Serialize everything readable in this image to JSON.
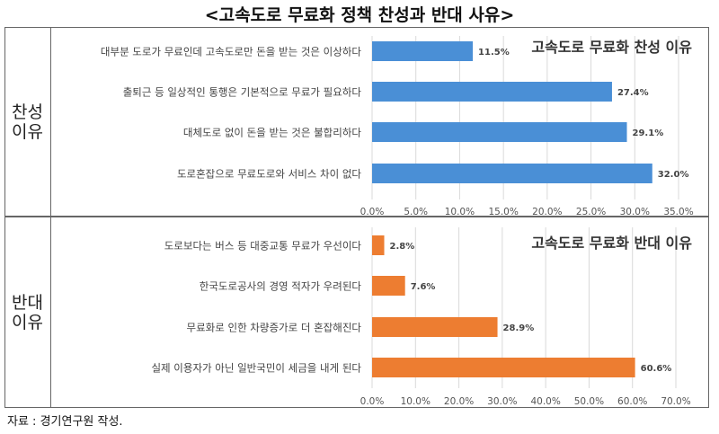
{
  "title": "<고속도로 무료화 정책 찬성과 반대 사유>",
  "footnote": "자료 : 경기연구원 작성.",
  "colors": {
    "pro": "#4a8fd6",
    "con": "#ed7d31",
    "grid": "#d9d9d9"
  },
  "chart_data": [
    {
      "type": "bar",
      "orientation": "horizontal",
      "side_label": [
        "찬성",
        "이유"
      ],
      "title": "고속도로 무료화 찬성 이유",
      "categories": [
        "대부분 도로가 무료인데 고속도로만 돈을 받는 것은 이상하다",
        "출퇴근 등 일상적인 통행은 기본적으로 무료가 필요하다",
        "대체도로 없이 돈을 받는 것은 불합리하다",
        "도로혼잡으로 무료도로와 서비스 차이 없다"
      ],
      "values": [
        11.5,
        27.4,
        29.1,
        32.0
      ],
      "data_labels": [
        "11.5%",
        "27.4%",
        "29.1%",
        "32.0%"
      ],
      "xlim": [
        0,
        35
      ],
      "ticks": [
        "0.0%",
        "5.0%",
        "10.0%",
        "15.0%",
        "20.0%",
        "25.0%",
        "30.0%",
        "35.0%"
      ],
      "grid": true
    },
    {
      "type": "bar",
      "orientation": "horizontal",
      "side_label": [
        "반대",
        "이유"
      ],
      "title": "고속도로 무료화 반대 이유",
      "categories": [
        "도로보다는 버스 등 대중교통 무료가 우선이다",
        "한국도로공사의 경영 적자가 우려된다",
        "무료화로 인한 차량증가로 더 혼잡해진다",
        "실제 이용자가 아닌 일반국민이 세금을 내게 된다"
      ],
      "values": [
        2.8,
        7.6,
        28.9,
        60.6
      ],
      "data_labels": [
        "2.8%",
        "7.6%",
        "28.9%",
        "60.6%"
      ],
      "xlim": [
        0,
        70
      ],
      "ticks": [
        "0.0%",
        "10.0%",
        "20.0%",
        "30.0%",
        "40.0%",
        "50.0%",
        "60.0%",
        "70.0%"
      ],
      "grid": true
    }
  ]
}
